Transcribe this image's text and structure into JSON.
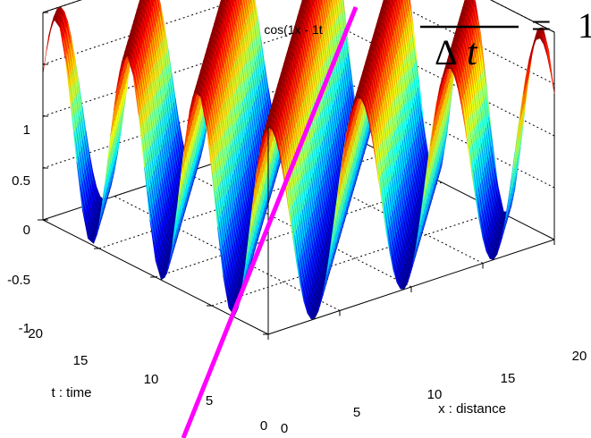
{
  "chart_data": {
    "type": "surface",
    "title": "cos(1x - 1t",
    "function": "cos(1x - 1t)",
    "xlabel": "x : distance",
    "ylabel": "t : time",
    "x_ticks": [
      "0",
      "5",
      "10",
      "15",
      "20"
    ],
    "t_ticks": [
      "0",
      "5",
      "10",
      "15",
      "20"
    ],
    "z_ticks": [
      "1",
      "0.5",
      "0",
      "-0.5",
      "-1"
    ],
    "xlim": [
      0,
      20
    ],
    "tlim": [
      0,
      20
    ],
    "zlim": [
      -1,
      1
    ],
    "k": 1,
    "omega": 1,
    "colormap": "jet",
    "grid": true,
    "overlay_line_color": "#ff00ff"
  },
  "equation": {
    "delta": "Δ",
    "t": "t",
    "equals": "=",
    "rhs": "1"
  }
}
